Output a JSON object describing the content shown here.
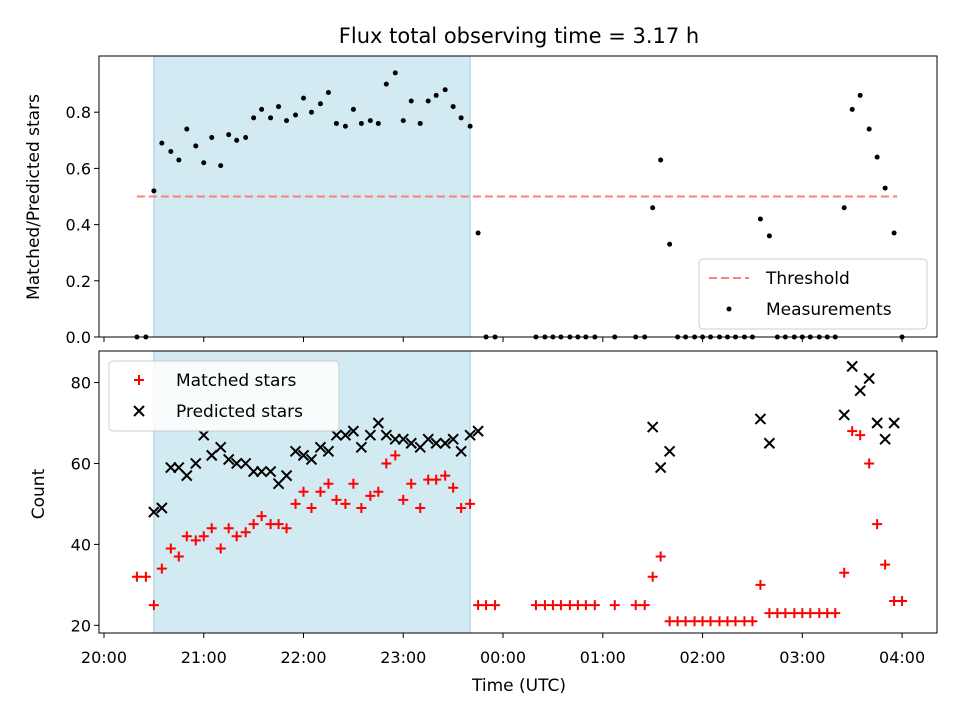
{
  "figure": {
    "title": "Flux total observing time = 3.17 h",
    "xlabel": "Time (UTC)"
  },
  "chart_data": [
    {
      "type": "scatter",
      "ylabel": "Matched/Predicted stars",
      "ylim": [
        0,
        1.0
      ],
      "yticks": [
        0.0,
        0.2,
        0.4,
        0.6,
        0.8
      ],
      "ytick_labels": [
        "0.0",
        "0.2",
        "0.4",
        "0.6",
        "0.8"
      ],
      "xlim": [
        -0.05,
        8.35
      ],
      "xticks": [
        0,
        1,
        2,
        3,
        4,
        5,
        6,
        7,
        8
      ],
      "xtick_labels": [
        "20:00",
        "21:00",
        "22:00",
        "23:00",
        "00:00",
        "01:00",
        "02:00",
        "03:00",
        "04:00"
      ],
      "shaded_region": {
        "x": [
          0.5,
          3.67
        ],
        "color": "#add8e6"
      },
      "threshold": {
        "name": "Threshold",
        "y": 0.5,
        "x": [
          0.33,
          7.95
        ],
        "color": "#ff7f7f"
      },
      "legend_position": "lower-right",
      "series": [
        {
          "name": "Measurements",
          "color": "#000000",
          "points": [
            [
              0.33,
              0
            ],
            [
              0.42,
              0
            ],
            [
              0.5,
              0.52
            ],
            [
              0.58,
              0.69
            ],
            [
              0.67,
              0.66
            ],
            [
              0.75,
              0.63
            ],
            [
              0.83,
              0.74
            ],
            [
              0.92,
              0.68
            ],
            [
              1.0,
              0.62
            ],
            [
              1.08,
              0.71
            ],
            [
              1.17,
              0.61
            ],
            [
              1.25,
              0.72
            ],
            [
              1.33,
              0.7
            ],
            [
              1.42,
              0.71
            ],
            [
              1.5,
              0.78
            ],
            [
              1.58,
              0.81
            ],
            [
              1.67,
              0.78
            ],
            [
              1.75,
              0.82
            ],
            [
              1.83,
              0.77
            ],
            [
              1.92,
              0.79
            ],
            [
              2.0,
              0.85
            ],
            [
              2.08,
              0.8
            ],
            [
              2.17,
              0.83
            ],
            [
              2.25,
              0.87
            ],
            [
              2.33,
              0.76
            ],
            [
              2.42,
              0.75
            ],
            [
              2.5,
              0.81
            ],
            [
              2.58,
              0.76
            ],
            [
              2.67,
              0.77
            ],
            [
              2.75,
              0.76
            ],
            [
              2.83,
              0.9
            ],
            [
              2.92,
              0.94
            ],
            [
              3.0,
              0.77
            ],
            [
              3.08,
              0.84
            ],
            [
              3.17,
              0.76
            ],
            [
              3.25,
              0.84
            ],
            [
              3.33,
              0.86
            ],
            [
              3.42,
              0.88
            ],
            [
              3.5,
              0.82
            ],
            [
              3.58,
              0.78
            ],
            [
              3.67,
              0.75
            ],
            [
              3.75,
              0.37
            ],
            [
              3.83,
              0
            ],
            [
              3.92,
              0
            ],
            [
              4.33,
              0
            ],
            [
              4.42,
              0
            ],
            [
              4.5,
              0
            ],
            [
              4.58,
              0
            ],
            [
              4.67,
              0
            ],
            [
              4.75,
              0
            ],
            [
              4.83,
              0
            ],
            [
              4.92,
              0
            ],
            [
              5.12,
              0
            ],
            [
              5.33,
              0
            ],
            [
              5.42,
              0
            ],
            [
              5.5,
              0.46
            ],
            [
              5.58,
              0.63
            ],
            [
              5.67,
              0.33
            ],
            [
              5.75,
              0
            ],
            [
              5.83,
              0
            ],
            [
              5.92,
              0
            ],
            [
              6.0,
              0
            ],
            [
              6.08,
              0
            ],
            [
              6.17,
              0
            ],
            [
              6.25,
              0
            ],
            [
              6.33,
              0
            ],
            [
              6.42,
              0
            ],
            [
              6.5,
              0
            ],
            [
              6.58,
              0.42
            ],
            [
              6.67,
              0.36
            ],
            [
              6.75,
              0
            ],
            [
              6.83,
              0
            ],
            [
              6.92,
              0
            ],
            [
              7.0,
              0
            ],
            [
              7.08,
              0
            ],
            [
              7.17,
              0
            ],
            [
              7.25,
              0
            ],
            [
              7.33,
              0
            ],
            [
              7.42,
              0.46
            ],
            [
              7.5,
              0.81
            ],
            [
              7.58,
              0.86
            ],
            [
              7.67,
              0.74
            ],
            [
              7.75,
              0.64
            ],
            [
              7.83,
              0.53
            ],
            [
              7.92,
              0.37
            ],
            [
              8.0,
              0
            ]
          ]
        }
      ]
    },
    {
      "type": "scatter",
      "ylabel": "Count",
      "ylim": [
        18.1,
        87.8
      ],
      "yticks": [
        20,
        40,
        60,
        80
      ],
      "ytick_labels": [
        "20",
        "40",
        "60",
        "80"
      ],
      "xlim": [
        -0.05,
        8.35
      ],
      "xticks": [
        0,
        1,
        2,
        3,
        4,
        5,
        6,
        7,
        8
      ],
      "xtick_labels": [
        "20:00",
        "21:00",
        "22:00",
        "23:00",
        "00:00",
        "01:00",
        "02:00",
        "03:00",
        "04:00"
      ],
      "shaded_region": {
        "x": [
          0.5,
          3.67
        ],
        "color": "#add8e6"
      },
      "legend_position": "upper-left",
      "series": [
        {
          "name": "Matched stars",
          "marker": "plus",
          "color": "#ff0000",
          "points": [
            [
              0.33,
              32
            ],
            [
              0.42,
              32
            ],
            [
              0.5,
              25
            ],
            [
              0.58,
              34
            ],
            [
              0.67,
              39
            ],
            [
              0.75,
              37
            ],
            [
              0.83,
              42
            ],
            [
              0.92,
              41
            ],
            [
              1.0,
              42
            ],
            [
              1.08,
              44
            ],
            [
              1.17,
              39
            ],
            [
              1.25,
              44
            ],
            [
              1.33,
              42
            ],
            [
              1.42,
              43
            ],
            [
              1.5,
              45
            ],
            [
              1.58,
              47
            ],
            [
              1.67,
              45
            ],
            [
              1.75,
              45
            ],
            [
              1.83,
              44
            ],
            [
              1.92,
              50
            ],
            [
              2.0,
              53
            ],
            [
              2.08,
              49
            ],
            [
              2.17,
              53
            ],
            [
              2.25,
              55
            ],
            [
              2.33,
              51
            ],
            [
              2.42,
              50
            ],
            [
              2.5,
              55
            ],
            [
              2.58,
              49
            ],
            [
              2.67,
              52
            ],
            [
              2.75,
              53
            ],
            [
              2.83,
              60
            ],
            [
              2.92,
              62
            ],
            [
              3.0,
              51
            ],
            [
              3.08,
              55
            ],
            [
              3.17,
              49
            ],
            [
              3.25,
              56
            ],
            [
              3.33,
              56
            ],
            [
              3.42,
              57
            ],
            [
              3.5,
              54
            ],
            [
              3.58,
              49
            ],
            [
              3.67,
              50
            ],
            [
              3.75,
              25
            ],
            [
              3.83,
              25
            ],
            [
              3.92,
              25
            ],
            [
              4.33,
              25
            ],
            [
              4.42,
              25
            ],
            [
              4.5,
              25
            ],
            [
              4.58,
              25
            ],
            [
              4.67,
              25
            ],
            [
              4.75,
              25
            ],
            [
              4.83,
              25
            ],
            [
              4.92,
              25
            ],
            [
              5.12,
              25
            ],
            [
              5.33,
              25
            ],
            [
              5.42,
              25
            ],
            [
              5.5,
              32
            ],
            [
              5.58,
              37
            ],
            [
              5.67,
              21
            ],
            [
              5.75,
              21
            ],
            [
              5.83,
              21
            ],
            [
              5.92,
              21
            ],
            [
              6.0,
              21
            ],
            [
              6.08,
              21
            ],
            [
              6.17,
              21
            ],
            [
              6.25,
              21
            ],
            [
              6.33,
              21
            ],
            [
              6.42,
              21
            ],
            [
              6.5,
              21
            ],
            [
              6.58,
              30
            ],
            [
              6.67,
              23
            ],
            [
              6.75,
              23
            ],
            [
              6.83,
              23
            ],
            [
              6.92,
              23
            ],
            [
              7.0,
              23
            ],
            [
              7.08,
              23
            ],
            [
              7.17,
              23
            ],
            [
              7.25,
              23
            ],
            [
              7.33,
              23
            ],
            [
              7.42,
              33
            ],
            [
              7.5,
              68
            ],
            [
              7.58,
              67
            ],
            [
              7.67,
              60
            ],
            [
              7.75,
              45
            ],
            [
              7.83,
              35
            ],
            [
              7.92,
              26
            ],
            [
              8.0,
              26
            ]
          ]
        },
        {
          "name": "Predicted stars",
          "marker": "x",
          "color": "#000000",
          "points": [
            [
              0.5,
              48
            ],
            [
              0.58,
              49
            ],
            [
              0.67,
              59
            ],
            [
              0.75,
              59
            ],
            [
              0.83,
              57
            ],
            [
              0.92,
              60
            ],
            [
              1.0,
              67
            ],
            [
              1.08,
              62
            ],
            [
              1.17,
              64
            ],
            [
              1.25,
              61
            ],
            [
              1.33,
              60
            ],
            [
              1.42,
              60
            ],
            [
              1.5,
              58
            ],
            [
              1.58,
              58
            ],
            [
              1.67,
              58
            ],
            [
              1.75,
              55
            ],
            [
              1.83,
              57
            ],
            [
              1.92,
              63
            ],
            [
              2.0,
              62
            ],
            [
              2.08,
              61
            ],
            [
              2.17,
              64
            ],
            [
              2.25,
              63
            ],
            [
              2.33,
              67
            ],
            [
              2.42,
              67
            ],
            [
              2.5,
              68
            ],
            [
              2.58,
              64
            ],
            [
              2.67,
              67
            ],
            [
              2.75,
              70
            ],
            [
              2.83,
              67
            ],
            [
              2.92,
              66
            ],
            [
              3.0,
              66
            ],
            [
              3.08,
              65
            ],
            [
              3.17,
              64
            ],
            [
              3.25,
              66
            ],
            [
              3.33,
              65
            ],
            [
              3.42,
              65
            ],
            [
              3.5,
              66
            ],
            [
              3.58,
              63
            ],
            [
              3.67,
              67
            ],
            [
              3.75,
              68
            ],
            [
              5.5,
              69
            ],
            [
              5.58,
              59
            ],
            [
              5.67,
              63
            ],
            [
              6.58,
              71
            ],
            [
              6.67,
              65
            ],
            [
              7.42,
              72
            ],
            [
              7.5,
              84
            ],
            [
              7.58,
              78
            ],
            [
              7.67,
              81
            ],
            [
              7.75,
              70
            ],
            [
              7.83,
              66
            ],
            [
              7.92,
              70
            ]
          ]
        }
      ]
    }
  ]
}
